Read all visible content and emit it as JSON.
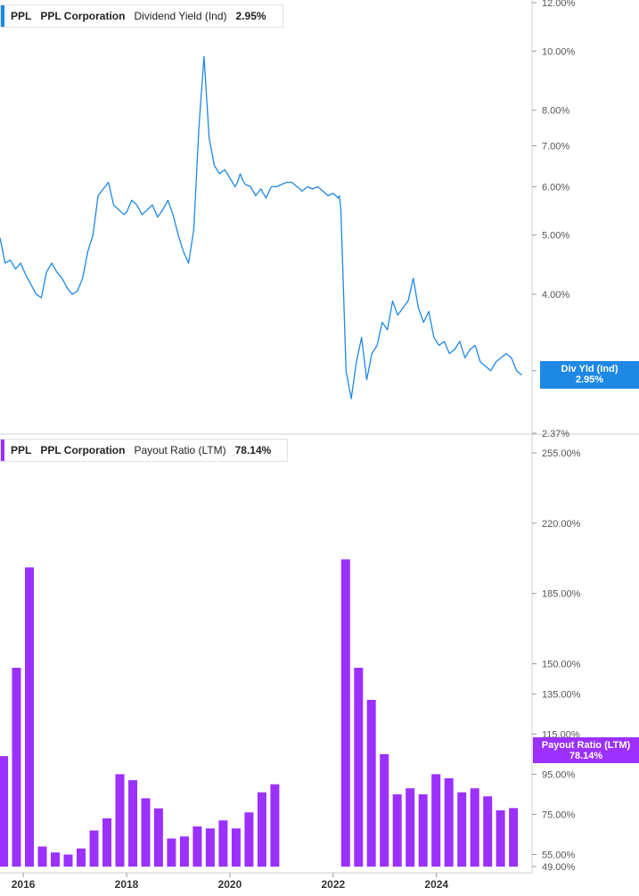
{
  "top_panel": {
    "legend": {
      "ticker": "PPL",
      "company": "PPL Corporation",
      "metric": "Dividend Yield (Ind)",
      "value": "2.95%"
    },
    "flag": {
      "label": "Div Yld (Ind)",
      "value": "2.95%"
    },
    "color": "#1e88e5"
  },
  "bottom_panel": {
    "legend": {
      "ticker": "PPL",
      "company": "PPL Corporation",
      "metric": "Payout Ratio (LTM)",
      "value": "78.14%"
    },
    "flag": {
      "label": "Payout Ratio (LTM)",
      "value": "78.14%"
    },
    "color": "#9b30ff"
  },
  "chart_data": [
    {
      "type": "line",
      "scale": "log",
      "title": "Dividend Yield (Ind)",
      "series_label": "PPL Corporation",
      "ylim": [
        2.37,
        12.0
      ],
      "yticks": [
        "12.00%",
        "10.00%",
        "8.00%",
        "7.00%",
        "6.00%",
        "5.00%",
        "4.00%",
        "3.00%",
        "2.37%"
      ],
      "ytick_values": [
        12.0,
        10.0,
        8.0,
        7.0,
        6.0,
        5.0,
        4.0,
        3.0,
        2.37
      ],
      "xlim": [
        2015.55,
        2025.85
      ],
      "x": [
        2015.55,
        2015.65,
        2015.75,
        2015.85,
        2015.95,
        2016.05,
        2016.15,
        2016.25,
        2016.35,
        2016.45,
        2016.55,
        2016.65,
        2016.75,
        2016.85,
        2016.95,
        2017.05,
        2017.15,
        2017.25,
        2017.35,
        2017.45,
        2017.55,
        2017.65,
        2017.75,
        2017.85,
        2017.95,
        2018.0,
        2018.1,
        2018.2,
        2018.3,
        2018.4,
        2018.5,
        2018.6,
        2018.7,
        2018.8,
        2018.9,
        2019.0,
        2019.1,
        2019.2,
        2019.3,
        2019.4,
        2019.5,
        2019.6,
        2019.7,
        2019.8,
        2019.9,
        2020.0,
        2020.1,
        2020.15,
        2020.2,
        2020.25,
        2020.3,
        2020.4,
        2020.5,
        2020.6,
        2020.7,
        2020.8,
        2020.9,
        2021.0,
        2021.1,
        2021.2,
        2021.3,
        2021.4,
        2021.5,
        2021.6,
        2021.7,
        2021.8,
        2021.9,
        2022.0,
        2022.1,
        2022.12,
        2022.15,
        2022.25,
        2022.35,
        2022.45,
        2022.55,
        2022.65,
        2022.75,
        2022.85,
        2022.95,
        2023.05,
        2023.15,
        2023.25,
        2023.35,
        2023.45,
        2023.55,
        2023.65,
        2023.75,
        2023.85,
        2023.95,
        2024.05,
        2024.15,
        2024.25,
        2024.35,
        2024.45,
        2024.55,
        2024.65,
        2024.75,
        2024.85,
        2024.95,
        2025.05,
        2025.15,
        2025.25,
        2025.35,
        2025.45,
        2025.55,
        2025.65
      ],
      "y": [
        4.95,
        4.5,
        4.55,
        4.4,
        4.5,
        4.3,
        4.15,
        4.0,
        3.95,
        4.35,
        4.5,
        4.35,
        4.25,
        4.1,
        4.0,
        4.05,
        4.25,
        4.7,
        5.0,
        5.8,
        5.95,
        6.1,
        5.6,
        5.5,
        5.4,
        5.45,
        5.7,
        5.6,
        5.4,
        5.5,
        5.6,
        5.35,
        5.5,
        5.7,
        5.4,
        5.0,
        4.7,
        4.5,
        5.1,
        7.5,
        9.8,
        7.2,
        6.5,
        6.3,
        6.4,
        6.2,
        6.0,
        6.1,
        6.3,
        6.15,
        6.05,
        6.0,
        5.8,
        5.95,
        5.75,
        6.0,
        6.0,
        6.05,
        6.1,
        6.1,
        6.0,
        5.9,
        6.0,
        5.95,
        6.0,
        5.9,
        5.8,
        5.85,
        5.75,
        5.8,
        5.5,
        3.0,
        2.7,
        3.1,
        3.4,
        2.9,
        3.2,
        3.3,
        3.6,
        3.5,
        3.9,
        3.7,
        3.8,
        3.9,
        4.25,
        3.8,
        3.6,
        3.75,
        3.4,
        3.3,
        3.35,
        3.2,
        3.25,
        3.35,
        3.15,
        3.25,
        3.3,
        3.1,
        3.05,
        3.0,
        3.1,
        3.15,
        3.2,
        3.15,
        3.0,
        2.95
      ]
    },
    {
      "type": "bar",
      "title": "Payout Ratio (LTM)",
      "series_label": "PPL Corporation",
      "ylim": [
        49.0,
        255.0
      ],
      "yticks": [
        "255.00%",
        "220.00%",
        "185.00%",
        "150.00%",
        "135.00%",
        "115.00%",
        "95.00%",
        "75.00%",
        "55.00%",
        "49.00%"
      ],
      "ytick_values": [
        255,
        220,
        185,
        150,
        135,
        115,
        95,
        75,
        55,
        49
      ],
      "xlim": [
        2015.55,
        2025.85
      ],
      "xticks": [
        "2016",
        "2018",
        "2020",
        "2022",
        "2024"
      ],
      "xtick_values": [
        2016,
        2018,
        2020,
        2022,
        2024
      ],
      "x": [
        2015.62,
        2015.87,
        2016.12,
        2016.37,
        2016.62,
        2016.87,
        2017.12,
        2017.37,
        2017.62,
        2017.87,
        2018.12,
        2018.37,
        2018.62,
        2018.87,
        2019.12,
        2019.37,
        2019.62,
        2019.87,
        2020.12,
        2020.37,
        2020.62,
        2020.87,
        2022.24,
        2022.49,
        2022.74,
        2022.99,
        2023.24,
        2023.49,
        2023.74,
        2023.99,
        2024.24,
        2024.49,
        2024.74,
        2024.99,
        2025.24,
        2025.49
      ],
      "values": [
        104,
        148,
        198,
        59,
        56,
        55,
        58,
        67,
        73,
        95,
        92,
        83,
        78,
        63,
        64,
        69,
        68,
        72,
        68,
        76,
        86,
        90,
        202,
        148,
        132,
        105,
        85,
        88,
        85,
        95,
        93,
        86,
        88,
        84,
        77,
        78.14
      ]
    }
  ]
}
